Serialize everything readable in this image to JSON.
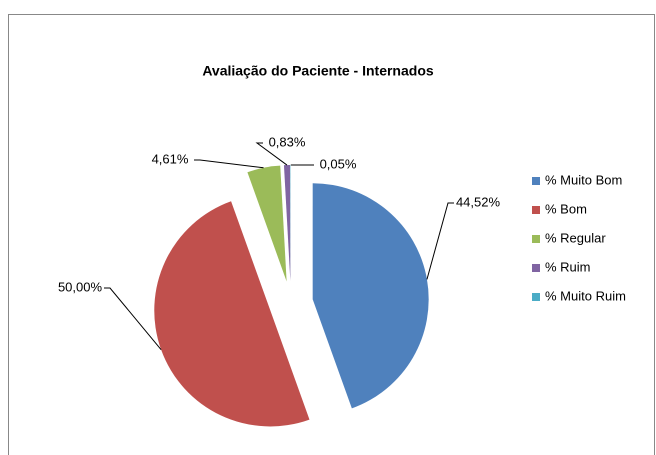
{
  "chart_data": {
    "type": "pie",
    "title": "Avaliação do Paciente - Internados",
    "categories": [
      "% Muito Bom",
      "% Bom",
      "% Regular",
      "% Ruim",
      "% Muito Ruim"
    ],
    "values": [
      44.52,
      50.0,
      4.61,
      0.83,
      0.05
    ],
    "value_labels": [
      "44,52%",
      "50,00%",
      "4,61%",
      "0,83%",
      "0,05%"
    ],
    "colors": [
      "#4f81bd",
      "#c0504d",
      "#9bbb59",
      "#8064a2",
      "#4bacc6"
    ],
    "legend": "right"
  }
}
